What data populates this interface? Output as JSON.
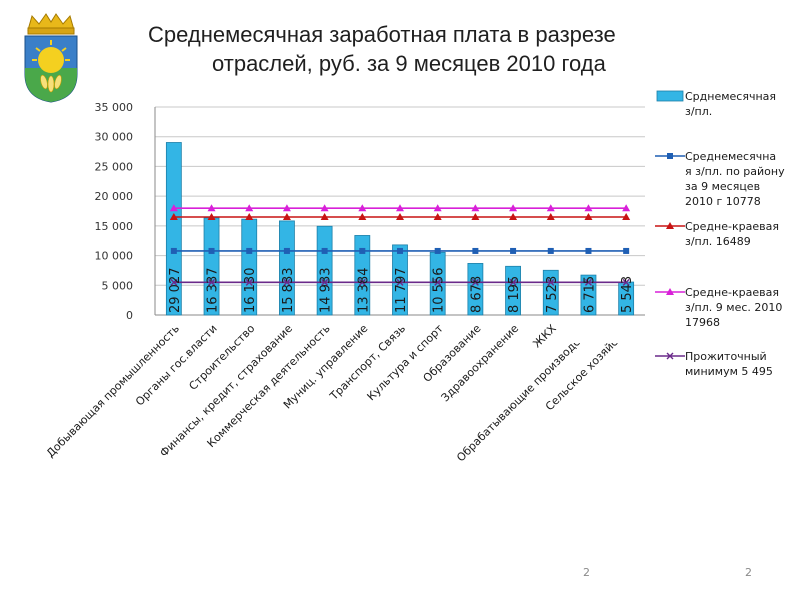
{
  "slide": {
    "title_line1": "Среднемесячная заработная плата в разрезе",
    "title_line2": "отраслей, руб.  за 9 месяцев 2010 года",
    "page_number_left": "2",
    "page_number_right": "2"
  },
  "chart_data": {
    "type": "bar",
    "title": "Среднемесячная заработная плата в разрезе отраслей, руб.  за 9 месяцев 2010 года",
    "ylim": [
      0,
      35000
    ],
    "yticks": [
      "0",
      "5 000",
      "10 000",
      "15 000",
      "20 000",
      "25 000",
      "30 000",
      "35 000"
    ],
    "ytick_values": [
      0,
      5000,
      10000,
      15000,
      20000,
      25000,
      30000,
      35000
    ],
    "categories": [
      "Добывающая промышленность",
      "Органы гос.власти",
      "Строительство",
      "Финансы, кредит, страхование",
      "Коммерческая деятельность",
      "Муниц. управление",
      "Транспорт, Связь",
      "Культура и спорт",
      "Образование",
      "Здравоохранение",
      "ЖКХ",
      "Обрабатывающие производства",
      "Сельское хозяйство"
    ],
    "bar_labels": [
      "29 027",
      "16 337",
      "16 130",
      "15 833",
      "14 933",
      "13 384",
      "11 797",
      "10 556",
      "8 678",
      "8 195",
      "7 523",
      "6 715",
      "5 543"
    ],
    "series": [
      {
        "name": "Срднемесячная з/пл.",
        "type": "bar",
        "color": "#33b5e5",
        "values": [
          29027,
          16337,
          16130,
          15833,
          14933,
          13384,
          11797,
          10556,
          8678,
          8195,
          7523,
          6715,
          5543
        ]
      },
      {
        "name": "Среднемесячная з/пл. по району за 9 месяцев 2010 г 10778",
        "type": "line",
        "marker": "square",
        "color": "#1f5fb4",
        "values": [
          10778,
          10778,
          10778,
          10778,
          10778,
          10778,
          10778,
          10778,
          10778,
          10778,
          10778,
          10778,
          10778
        ]
      },
      {
        "name": "Средне-краевая з/пл. 16489",
        "type": "line",
        "marker": "triangle",
        "color": "#c81414",
        "values": [
          16489,
          16489,
          16489,
          16489,
          16489,
          16489,
          16489,
          16489,
          16489,
          16489,
          16489,
          16489,
          16489
        ]
      },
      {
        "name": "Средне-краевая з/пл. 9 мес. 2010 17968",
        "type": "line",
        "marker": "triangle",
        "color": "#d820d8",
        "values": [
          17968,
          17968,
          17968,
          17968,
          17968,
          17968,
          17968,
          17968,
          17968,
          17968,
          17968,
          17968,
          17968
        ]
      },
      {
        "name": "Прожиточный минимум 5 495",
        "type": "line",
        "marker": "x",
        "color": "#6a2a8a",
        "values": [
          5495,
          5495,
          5495,
          5495,
          5495,
          5495,
          5495,
          5495,
          5495,
          5495,
          5495,
          5495,
          5495
        ]
      }
    ],
    "legend": [
      {
        "text": "Срднемесячная з/пл.",
        "color": "#33b5e5",
        "marker": "bar"
      },
      {
        "text": "Среднемесячная з/пл. по району за 9 месяцев 2010 г 10778",
        "color": "#1f5fb4",
        "marker": "square"
      },
      {
        "text": "Средне-краевая з/пл. 16489",
        "color": "#c81414",
        "marker": "triangle"
      },
      {
        "text": "Средне-краевая з/пл. 9 мес. 2010 17968",
        "color": "#d820d8",
        "marker": "triangle"
      },
      {
        "text": "Прожиточный минимум 5 495",
        "color": "#6a2a8a",
        "marker": "x"
      }
    ],
    "legend_position": "right"
  },
  "coat_of_arms": {
    "shield_color": "#3a7fc8",
    "crown_color": "#e8b81a",
    "sun_color": "#f4d020",
    "field_color": "#4aa84a"
  }
}
